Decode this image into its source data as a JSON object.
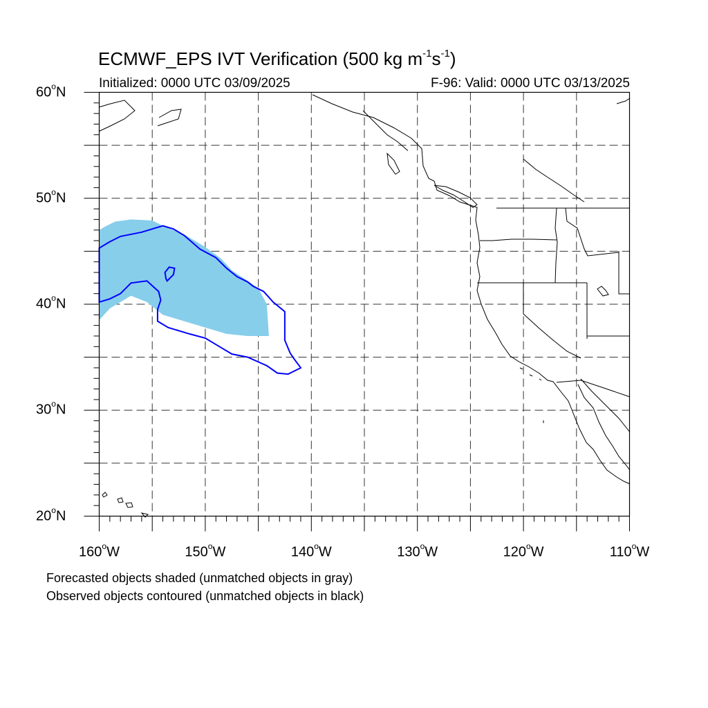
{
  "title": {
    "main_prefix": "ECMWF_EPS IVT Verification (500 kg m",
    "exp1": "-1",
    "mid": "s",
    "exp2": "-1",
    "suffix": ")"
  },
  "subtitle": {
    "initialized": "Initialized: 0000 UTC 03/09/2025",
    "valid": "F-96: Valid: 0000 UTC 03/13/2025"
  },
  "map": {
    "lon_range": [
      -160,
      -110
    ],
    "lat_range": [
      20,
      60
    ],
    "gridlines": "dashed",
    "lat_ticks": [
      {
        "value": 60,
        "num": "60",
        "deg": "o",
        "hemi": "N"
      },
      {
        "value": 50,
        "num": "50",
        "deg": "o",
        "hemi": "N"
      },
      {
        "value": 40,
        "num": "40",
        "deg": "o",
        "hemi": "N"
      },
      {
        "value": 30,
        "num": "30",
        "deg": "o",
        "hemi": "N"
      },
      {
        "value": 20,
        "num": "20",
        "deg": "o",
        "hemi": "N"
      }
    ],
    "lon_ticks": [
      {
        "value": -160,
        "num": "160",
        "deg": "o",
        "hemi": "W"
      },
      {
        "value": -150,
        "num": "150",
        "deg": "o",
        "hemi": "W"
      },
      {
        "value": -140,
        "num": "140",
        "deg": "o",
        "hemi": "W"
      },
      {
        "value": -130,
        "num": "130",
        "deg": "o",
        "hemi": "W"
      },
      {
        "value": -120,
        "num": "120",
        "deg": "o",
        "hemi": "W"
      },
      {
        "value": -110,
        "num": "110",
        "deg": "o",
        "hemi": "W"
      }
    ],
    "colors": {
      "forecast_fill": "#87ceeb",
      "observed_contour": "#0000ff",
      "coastline": "#000000"
    },
    "forecast_object": {
      "lonlat": [
        [
          -160,
          38.5
        ],
        [
          -160,
          47
        ],
        [
          -159.5,
          47.3
        ],
        [
          -158.5,
          47.8
        ],
        [
          -157,
          48
        ],
        [
          -155,
          47.9
        ],
        [
          -154,
          47.4
        ],
        [
          -152,
          46.6
        ],
        [
          -150,
          45.4
        ],
        [
          -148.5,
          44.3
        ],
        [
          -147.5,
          43.2
        ],
        [
          -146,
          42.2
        ],
        [
          -145,
          41.5
        ],
        [
          -144.2,
          40
        ],
        [
          -144,
          37
        ],
        [
          -146,
          37
        ],
        [
          -148,
          37.2
        ],
        [
          -150,
          37.8
        ],
        [
          -152,
          38.4
        ],
        [
          -154,
          39
        ],
        [
          -155.5,
          40.2
        ],
        [
          -157,
          40.8
        ],
        [
          -159,
          39.6
        ]
      ]
    },
    "observed_contour": {
      "lonlat": [
        [
          -160,
          40.2
        ],
        [
          -160,
          45.3
        ],
        [
          -159,
          45.9
        ],
        [
          -158,
          46.4
        ],
        [
          -156,
          46.8
        ],
        [
          -154,
          47.4
        ],
        [
          -153,
          47.1
        ],
        [
          -152,
          46.5
        ],
        [
          -150.5,
          45.2
        ],
        [
          -149,
          44.4
        ],
        [
          -148,
          43.4
        ],
        [
          -147,
          42.6
        ],
        [
          -146,
          42.1
        ],
        [
          -145.5,
          41.7
        ],
        [
          -144.5,
          41.2
        ],
        [
          -143.6,
          40.2
        ],
        [
          -142.5,
          39.3
        ],
        [
          -142.5,
          36.6
        ],
        [
          -142,
          35.4
        ],
        [
          -141.6,
          34.8
        ],
        [
          -141,
          34
        ],
        [
          -142.2,
          33.4
        ],
        [
          -143.2,
          33.5
        ],
        [
          -144.2,
          34.2
        ],
        [
          -146,
          35
        ],
        [
          -147.5,
          35.3
        ],
        [
          -148.5,
          35.9
        ],
        [
          -150,
          36.8
        ],
        [
          -151.5,
          37.2
        ],
        [
          -153.5,
          37.8
        ],
        [
          -154.5,
          38.4
        ],
        [
          -154.5,
          39.5
        ],
        [
          -154.2,
          40.4
        ],
        [
          -154.4,
          41.2
        ],
        [
          -155.5,
          42.2
        ],
        [
          -157,
          42
        ],
        [
          -158,
          41
        ],
        [
          -159,
          40.5
        ]
      ]
    },
    "observed_hole": {
      "lonlat": [
        [
          -153.6,
          42.2
        ],
        [
          -153,
          42.8
        ],
        [
          -152.9,
          43.4
        ],
        [
          -153.4,
          43.5
        ],
        [
          -153.8,
          43
        ],
        [
          -153.7,
          42.4
        ]
      ]
    }
  },
  "notes": {
    "forecast": "Forecasted objects shaded (unmatched objects in gray)",
    "observed": "Observed objects contoured (unmatched objects in black)"
  }
}
